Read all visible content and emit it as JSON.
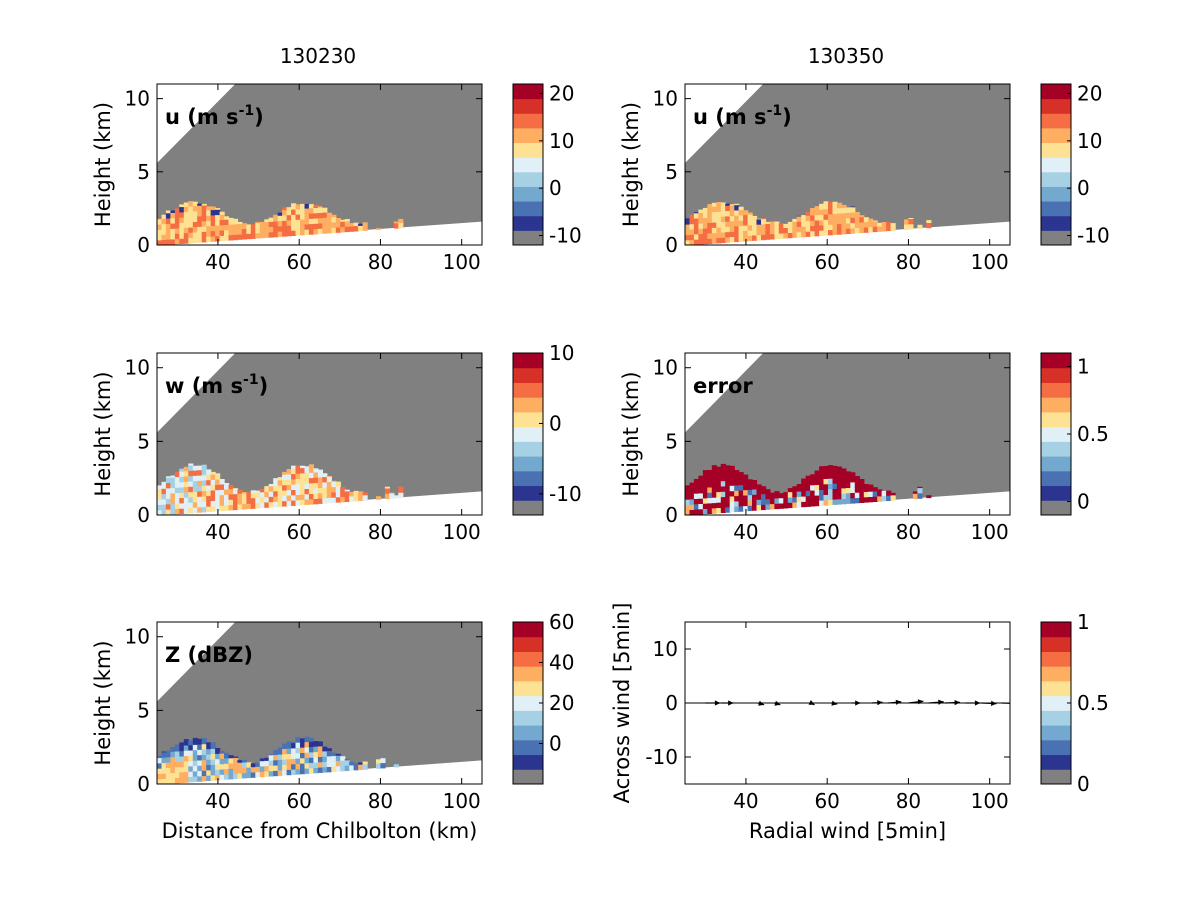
{
  "figure": {
    "column_titles": [
      "130230",
      "130350"
    ]
  },
  "chart_data": [
    {
      "type": "heatmap",
      "panel": "u-130230",
      "label": "u (m s^-1)",
      "label_main": "u (m s",
      "label_sup": "-1",
      "label_close": ")",
      "ylabel": "Height (km)",
      "xlabel": "",
      "xlim": [
        25,
        105
      ],
      "ylim": [
        0,
        11
      ],
      "xticks": [
        40,
        60,
        80,
        100
      ],
      "yticks": [
        0,
        5,
        10
      ],
      "colorbar": {
        "min": -12,
        "max": 22,
        "ticks": [
          -10,
          0,
          10,
          20
        ]
      },
      "echo_top_km": 2.8
    },
    {
      "type": "heatmap",
      "panel": "u-130350",
      "label": "u (m s^-1)",
      "label_main": "u (m s",
      "label_sup": "-1",
      "label_close": ")",
      "ylabel": "Height (km)",
      "xlabel": "",
      "xlim": [
        25,
        105
      ],
      "ylim": [
        0,
        11
      ],
      "xticks": [
        40,
        60,
        80,
        100
      ],
      "yticks": [
        0,
        5,
        10
      ],
      "colorbar": {
        "min": -12,
        "max": 22,
        "ticks": [
          -10,
          0,
          10,
          20
        ]
      },
      "echo_top_km": 2.8
    },
    {
      "type": "heatmap",
      "panel": "w-130230",
      "label": "w (m s^-1)",
      "label_main": "w (m s",
      "label_sup": "-1",
      "label_close": ")",
      "ylabel": "Height (km)",
      "xlabel": "",
      "xlim": [
        25,
        105
      ],
      "ylim": [
        0,
        11
      ],
      "xticks": [
        40,
        60,
        80,
        100
      ],
      "yticks": [
        0,
        5,
        10
      ],
      "colorbar": {
        "min": -13,
        "max": 10,
        "ticks": [
          -10,
          0,
          10
        ]
      },
      "echo_top_km": 3.3
    },
    {
      "type": "heatmap",
      "panel": "error-130350",
      "label": "error",
      "label_main": "error",
      "label_sup": "",
      "label_close": "",
      "ylabel": "Height (km)",
      "xlabel": "",
      "xlim": [
        25,
        105
      ],
      "ylim": [
        0,
        11
      ],
      "xticks": [
        40,
        60,
        80,
        100
      ],
      "yticks": [
        0,
        5,
        10
      ],
      "colorbar": {
        "min": -0.1,
        "max": 1.1,
        "ticks": [
          0,
          0.5,
          1
        ]
      },
      "echo_top_km": 3.3
    },
    {
      "type": "heatmap",
      "panel": "Z-130230",
      "label": "Z (dBZ)",
      "label_main": "Z (dBZ)",
      "label_sup": "",
      "label_close": "",
      "ylabel": "Height (km)",
      "xlabel": "Distance from Chilbolton (km)",
      "xlim": [
        25,
        105
      ],
      "ylim": [
        0,
        11
      ],
      "xticks": [
        40,
        60,
        80,
        100
      ],
      "yticks": [
        0,
        5,
        10
      ],
      "colorbar": {
        "min": -20,
        "max": 60,
        "ticks": [
          0,
          20,
          40,
          60
        ]
      },
      "echo_top_km": 3.0
    },
    {
      "type": "quiver",
      "panel": "wind-130350",
      "label": "",
      "ylabel": "Across wind [5min]",
      "xlabel": "Radial wind [5min]",
      "xlim": [
        25,
        105
      ],
      "ylim": [
        -15,
        15
      ],
      "xticks": [
        40,
        60,
        80,
        100
      ],
      "yticks": [
        -10,
        0,
        10
      ],
      "colorbar": {
        "min": 0,
        "max": 1,
        "ticks": [
          0,
          0.5,
          1
        ]
      },
      "points": [
        {
          "x": 30,
          "y": 0,
          "u": 2.5,
          "v": 0
        },
        {
          "x": 34,
          "y": 0,
          "u": 2.0,
          "v": 0
        },
        {
          "x": 43,
          "y": 0,
          "u": 1.0,
          "v": -0.3
        },
        {
          "x": 47,
          "y": 0,
          "u": 1.0,
          "v": -0.3
        },
        {
          "x": 56,
          "y": 0,
          "u": 0.6,
          "v": -0.3
        },
        {
          "x": 61,
          "y": 0,
          "u": 1.0,
          "v": -0.2
        },
        {
          "x": 66,
          "y": 0,
          "u": 1.5,
          "v": 0
        },
        {
          "x": 71,
          "y": 0,
          "u": 1.8,
          "v": 0.1
        },
        {
          "x": 75,
          "y": 0,
          "u": 2.2,
          "v": 0.2
        },
        {
          "x": 80,
          "y": 0,
          "u": 2.5,
          "v": 0.3
        },
        {
          "x": 85,
          "y": 0,
          "u": 2.5,
          "v": 0.2
        },
        {
          "x": 89,
          "y": 0,
          "u": 2.5,
          "v": 0.1
        },
        {
          "x": 94,
          "y": 0,
          "u": 2.5,
          "v": 0
        },
        {
          "x": 98,
          "y": 0,
          "u": 2.5,
          "v": -0.1
        },
        {
          "x": 103,
          "y": 0,
          "u": 2.5,
          "v": -0.1
        }
      ]
    }
  ],
  "colormap": [
    "#808080",
    "#2b3590",
    "#4a72b3",
    "#74a9cf",
    "#a6d0e4",
    "#e0f0f6",
    "#fee294",
    "#fdae61",
    "#f46d43",
    "#d73027",
    "#a50026"
  ],
  "missing_color": "#808080"
}
